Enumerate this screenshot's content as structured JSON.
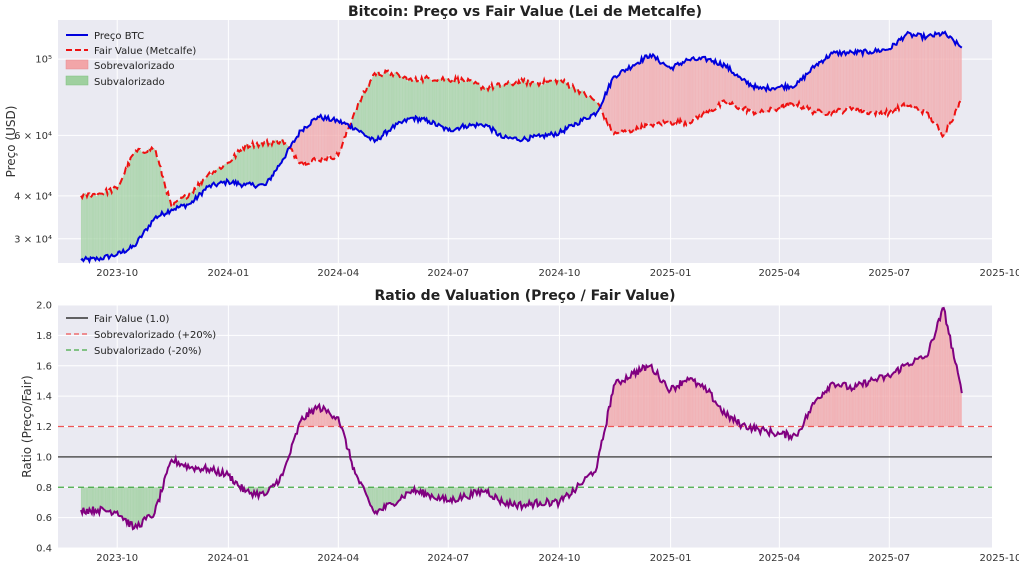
{
  "chart_data": [
    {
      "type": "line",
      "title": "Bitcoin: Preço vs Fair Value (Lei de Metcalfe)",
      "ylabel": "Preço (USD)",
      "xlabel": "",
      "yscale": "log",
      "ylim": [
        25500,
        130000
      ],
      "xlim": [
        "2023-08-13",
        "2025-09-24"
      ],
      "x_ticks": [
        "2023-10",
        "2024-01",
        "2024-04",
        "2024-07",
        "2024-10",
        "2025-01",
        "2025-04",
        "2025-07",
        "2025-10"
      ],
      "y_ticks": [
        {
          "value": 30000,
          "label": "3 × 10⁴"
        },
        {
          "value": 40000,
          "label": "4 × 10⁴"
        },
        {
          "value": 60000,
          "label": "6 × 10⁴"
        },
        {
          "value": 100000,
          "label": "10⁵"
        }
      ],
      "grid": true,
      "legend": "top-left",
      "legend_entries": [
        "Preço BTC",
        "Fair Value (Metcalfe)",
        "Sobrevalorizado",
        "Subvalorizado"
      ],
      "colors": {
        "price": "#0000dd",
        "fair": "#ee1111",
        "over": "#f2a5a8",
        "under": "#9fd09f"
      },
      "x": [
        "2023-09-01",
        "2023-09-15",
        "2023-10-01",
        "2023-10-15",
        "2023-11-01",
        "2023-11-15",
        "2023-12-01",
        "2023-12-15",
        "2024-01-01",
        "2024-01-15",
        "2024-02-01",
        "2024-02-15",
        "2024-03-01",
        "2024-03-15",
        "2024-04-01",
        "2024-04-15",
        "2024-05-01",
        "2024-05-15",
        "2024-06-01",
        "2024-06-15",
        "2024-07-01",
        "2024-07-15",
        "2024-08-01",
        "2024-08-15",
        "2024-09-01",
        "2024-09-15",
        "2024-10-01",
        "2024-10-15",
        "2024-11-01",
        "2024-11-15",
        "2024-12-01",
        "2024-12-15",
        "2025-01-01",
        "2025-01-15",
        "2025-02-01",
        "2025-02-15",
        "2025-03-01",
        "2025-03-15",
        "2025-04-01",
        "2025-04-15",
        "2025-05-01",
        "2025-05-15",
        "2025-06-01",
        "2025-06-15",
        "2025-07-01",
        "2025-07-15",
        "2025-08-01",
        "2025-08-15",
        "2025-08-30"
      ],
      "series": [
        {
          "name": "Preço BTC",
          "values": [
            26000,
            26200,
            27000,
            28500,
            34500,
            36500,
            38000,
            42500,
            44000,
            43000,
            43000,
            51000,
            62000,
            68000,
            66000,
            63000,
            57500,
            63000,
            67500,
            66000,
            62000,
            64000,
            64500,
            59000,
            58500,
            59500,
            61000,
            65000,
            70000,
            89000,
            96000,
            103000,
            94000,
            99500,
            100000,
            96000,
            87000,
            82000,
            83000,
            84000,
            96000,
            104000,
            104500,
            105000,
            107000,
            118000,
            116000,
            119000,
            108000
          ]
        },
        {
          "name": "Fair Value (Metcalfe)",
          "values": [
            40000,
            40500,
            42000,
            53500,
            55000,
            37000,
            41000,
            46000,
            50000,
            56000,
            57000,
            58000,
            50000,
            51000,
            52500,
            71000,
            91000,
            91000,
            86500,
            88000,
            87500,
            86500,
            82500,
            84000,
            86000,
            85000,
            87000,
            82000,
            75000,
            60500,
            62000,
            64500,
            65500,
            65500,
            70000,
            75000,
            72000,
            69500,
            72000,
            74000,
            70000,
            70000,
            72000,
            70000,
            70000,
            73500,
            70000,
            60000,
            76000
          ]
        }
      ]
    },
    {
      "type": "line",
      "title": "Ratio de Valuation (Preço / Fair Value)",
      "ylabel": "Ratio (Preço/Fair)",
      "xlabel": "",
      "ylim": [
        0.4,
        2.0
      ],
      "xlim": [
        "2023-08-13",
        "2025-09-24"
      ],
      "x_ticks": [
        "2023-10",
        "2024-01",
        "2024-04",
        "2024-07",
        "2024-10",
        "2025-01",
        "2025-04",
        "2025-07",
        "2025-10"
      ],
      "y_ticks": [
        0.4,
        0.6,
        0.8,
        1.0,
        1.2,
        1.4,
        1.6,
        1.8,
        2.0
      ],
      "grid": true,
      "legend": "top-left",
      "legend_entries": [
        "Fair Value (1.0)",
        "Sobrevalorizado (+20%)",
        "Subvalorizado (-20%)"
      ],
      "reference_lines": [
        {
          "name": "Fair Value (1.0)",
          "value": 1.0,
          "color": "#555555",
          "style": "solid"
        },
        {
          "name": "Sobrevalorizado (+20%)",
          "value": 1.2,
          "color": "#ee5555",
          "style": "dashed"
        },
        {
          "name": "Subvalorizado (-20%)",
          "value": 0.8,
          "color": "#44aa44",
          "style": "dashed"
        }
      ],
      "colors": {
        "ratio": "#800080",
        "over": "#f2a5a8",
        "under": "#9fd09f"
      },
      "x": [
        "2023-09-01",
        "2023-09-15",
        "2023-10-01",
        "2023-10-15",
        "2023-11-01",
        "2023-11-15",
        "2023-12-01",
        "2023-12-15",
        "2024-01-01",
        "2024-01-15",
        "2024-02-01",
        "2024-02-15",
        "2024-03-01",
        "2024-03-15",
        "2024-04-01",
        "2024-04-15",
        "2024-05-01",
        "2024-05-15",
        "2024-06-01",
        "2024-06-15",
        "2024-07-01",
        "2024-07-15",
        "2024-08-01",
        "2024-08-15",
        "2024-09-01",
        "2024-09-15",
        "2024-10-01",
        "2024-10-15",
        "2024-11-01",
        "2024-11-15",
        "2024-12-01",
        "2024-12-15",
        "2025-01-01",
        "2025-01-15",
        "2025-02-01",
        "2025-02-15",
        "2025-03-01",
        "2025-03-15",
        "2025-04-01",
        "2025-04-15",
        "2025-05-01",
        "2025-05-15",
        "2025-06-01",
        "2025-06-15",
        "2025-07-01",
        "2025-07-15",
        "2025-08-01",
        "2025-08-15",
        "2025-08-30"
      ],
      "values": [
        0.65,
        0.65,
        0.64,
        0.53,
        0.63,
        0.98,
        0.93,
        0.92,
        0.88,
        0.77,
        0.75,
        0.88,
        1.24,
        1.33,
        1.26,
        0.89,
        0.63,
        0.69,
        0.78,
        0.75,
        0.71,
        0.74,
        0.78,
        0.7,
        0.68,
        0.7,
        0.7,
        0.79,
        0.93,
        1.47,
        1.55,
        1.6,
        1.44,
        1.52,
        1.43,
        1.28,
        1.21,
        1.18,
        1.15,
        1.14,
        1.37,
        1.49,
        1.45,
        1.5,
        1.53,
        1.61,
        1.66,
        1.98,
        1.42
      ]
    }
  ]
}
